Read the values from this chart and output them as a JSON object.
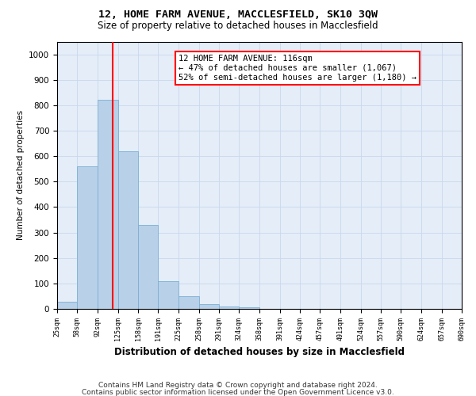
{
  "title1": "12, HOME FARM AVENUE, MACCLESFIELD, SK10 3QW",
  "title2": "Size of property relative to detached houses in Macclesfield",
  "xlabel": "Distribution of detached houses by size in Macclesfield",
  "ylabel": "Number of detached properties",
  "footnote1": "Contains HM Land Registry data © Crown copyright and database right 2024.",
  "footnote2": "Contains public sector information licensed under the Open Government Licence v3.0.",
  "bar_edges": [
    25,
    58,
    92,
    125,
    158,
    191,
    225,
    258,
    291,
    324,
    358,
    391,
    424,
    457,
    491,
    524,
    557,
    590,
    624,
    657,
    690
  ],
  "bar_heights": [
    28,
    560,
    820,
    620,
    330,
    110,
    50,
    20,
    10,
    5,
    0,
    0,
    0,
    0,
    0,
    0,
    0,
    0,
    0,
    0
  ],
  "bar_color": "#b8d0e8",
  "bar_edge_color": "#7aafd4",
  "property_size": 116,
  "vline_color": "red",
  "annotation_text": "12 HOME FARM AVENUE: 116sqm\n← 47% of detached houses are smaller (1,067)\n52% of semi-detached houses are larger (1,180) →",
  "annotation_box_color": "red",
  "ylim": [
    0,
    1050
  ],
  "yticks": [
    0,
    100,
    200,
    300,
    400,
    500,
    600,
    700,
    800,
    900,
    1000
  ],
  "grid_color": "#c8d8ec",
  "bg_color": "#e4edf8"
}
